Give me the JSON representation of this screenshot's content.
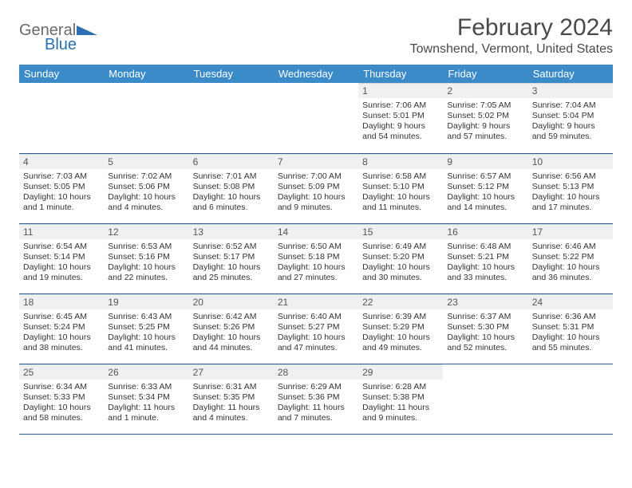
{
  "brand": {
    "text1": "General",
    "text2": "Blue",
    "text1_color": "#6a6a6a",
    "text2_color": "#2b6fb0",
    "tri_color": "#2b6fb0"
  },
  "title": "February 2024",
  "location": "Townshend, Vermont, United States",
  "colors": {
    "header_bg": "#3b8bc9",
    "header_fg": "#ffffff",
    "row_divider": "#2f5f8f",
    "daynum_bg": "#f0f0f0"
  },
  "weekdays": [
    "Sunday",
    "Monday",
    "Tuesday",
    "Wednesday",
    "Thursday",
    "Friday",
    "Saturday"
  ],
  "weeks": [
    [
      null,
      null,
      null,
      null,
      {
        "n": "1",
        "sunrise": "Sunrise: 7:06 AM",
        "sunset": "Sunset: 5:01 PM",
        "daylight": "Daylight: 9 hours and 54 minutes."
      },
      {
        "n": "2",
        "sunrise": "Sunrise: 7:05 AM",
        "sunset": "Sunset: 5:02 PM",
        "daylight": "Daylight: 9 hours and 57 minutes."
      },
      {
        "n": "3",
        "sunrise": "Sunrise: 7:04 AM",
        "sunset": "Sunset: 5:04 PM",
        "daylight": "Daylight: 9 hours and 59 minutes."
      }
    ],
    [
      {
        "n": "4",
        "sunrise": "Sunrise: 7:03 AM",
        "sunset": "Sunset: 5:05 PM",
        "daylight": "Daylight: 10 hours and 1 minute."
      },
      {
        "n": "5",
        "sunrise": "Sunrise: 7:02 AM",
        "sunset": "Sunset: 5:06 PM",
        "daylight": "Daylight: 10 hours and 4 minutes."
      },
      {
        "n": "6",
        "sunrise": "Sunrise: 7:01 AM",
        "sunset": "Sunset: 5:08 PM",
        "daylight": "Daylight: 10 hours and 6 minutes."
      },
      {
        "n": "7",
        "sunrise": "Sunrise: 7:00 AM",
        "sunset": "Sunset: 5:09 PM",
        "daylight": "Daylight: 10 hours and 9 minutes."
      },
      {
        "n": "8",
        "sunrise": "Sunrise: 6:58 AM",
        "sunset": "Sunset: 5:10 PM",
        "daylight": "Daylight: 10 hours and 11 minutes."
      },
      {
        "n": "9",
        "sunrise": "Sunrise: 6:57 AM",
        "sunset": "Sunset: 5:12 PM",
        "daylight": "Daylight: 10 hours and 14 minutes."
      },
      {
        "n": "10",
        "sunrise": "Sunrise: 6:56 AM",
        "sunset": "Sunset: 5:13 PM",
        "daylight": "Daylight: 10 hours and 17 minutes."
      }
    ],
    [
      {
        "n": "11",
        "sunrise": "Sunrise: 6:54 AM",
        "sunset": "Sunset: 5:14 PM",
        "daylight": "Daylight: 10 hours and 19 minutes."
      },
      {
        "n": "12",
        "sunrise": "Sunrise: 6:53 AM",
        "sunset": "Sunset: 5:16 PM",
        "daylight": "Daylight: 10 hours and 22 minutes."
      },
      {
        "n": "13",
        "sunrise": "Sunrise: 6:52 AM",
        "sunset": "Sunset: 5:17 PM",
        "daylight": "Daylight: 10 hours and 25 minutes."
      },
      {
        "n": "14",
        "sunrise": "Sunrise: 6:50 AM",
        "sunset": "Sunset: 5:18 PM",
        "daylight": "Daylight: 10 hours and 27 minutes."
      },
      {
        "n": "15",
        "sunrise": "Sunrise: 6:49 AM",
        "sunset": "Sunset: 5:20 PM",
        "daylight": "Daylight: 10 hours and 30 minutes."
      },
      {
        "n": "16",
        "sunrise": "Sunrise: 6:48 AM",
        "sunset": "Sunset: 5:21 PM",
        "daylight": "Daylight: 10 hours and 33 minutes."
      },
      {
        "n": "17",
        "sunrise": "Sunrise: 6:46 AM",
        "sunset": "Sunset: 5:22 PM",
        "daylight": "Daylight: 10 hours and 36 minutes."
      }
    ],
    [
      {
        "n": "18",
        "sunrise": "Sunrise: 6:45 AM",
        "sunset": "Sunset: 5:24 PM",
        "daylight": "Daylight: 10 hours and 38 minutes."
      },
      {
        "n": "19",
        "sunrise": "Sunrise: 6:43 AM",
        "sunset": "Sunset: 5:25 PM",
        "daylight": "Daylight: 10 hours and 41 minutes."
      },
      {
        "n": "20",
        "sunrise": "Sunrise: 6:42 AM",
        "sunset": "Sunset: 5:26 PM",
        "daylight": "Daylight: 10 hours and 44 minutes."
      },
      {
        "n": "21",
        "sunrise": "Sunrise: 6:40 AM",
        "sunset": "Sunset: 5:27 PM",
        "daylight": "Daylight: 10 hours and 47 minutes."
      },
      {
        "n": "22",
        "sunrise": "Sunrise: 6:39 AM",
        "sunset": "Sunset: 5:29 PM",
        "daylight": "Daylight: 10 hours and 49 minutes."
      },
      {
        "n": "23",
        "sunrise": "Sunrise: 6:37 AM",
        "sunset": "Sunset: 5:30 PM",
        "daylight": "Daylight: 10 hours and 52 minutes."
      },
      {
        "n": "24",
        "sunrise": "Sunrise: 6:36 AM",
        "sunset": "Sunset: 5:31 PM",
        "daylight": "Daylight: 10 hours and 55 minutes."
      }
    ],
    [
      {
        "n": "25",
        "sunrise": "Sunrise: 6:34 AM",
        "sunset": "Sunset: 5:33 PM",
        "daylight": "Daylight: 10 hours and 58 minutes."
      },
      {
        "n": "26",
        "sunrise": "Sunrise: 6:33 AM",
        "sunset": "Sunset: 5:34 PM",
        "daylight": "Daylight: 11 hours and 1 minute."
      },
      {
        "n": "27",
        "sunrise": "Sunrise: 6:31 AM",
        "sunset": "Sunset: 5:35 PM",
        "daylight": "Daylight: 11 hours and 4 minutes."
      },
      {
        "n": "28",
        "sunrise": "Sunrise: 6:29 AM",
        "sunset": "Sunset: 5:36 PM",
        "daylight": "Daylight: 11 hours and 7 minutes."
      },
      {
        "n": "29",
        "sunrise": "Sunrise: 6:28 AM",
        "sunset": "Sunset: 5:38 PM",
        "daylight": "Daylight: 11 hours and 9 minutes."
      },
      null,
      null
    ]
  ]
}
